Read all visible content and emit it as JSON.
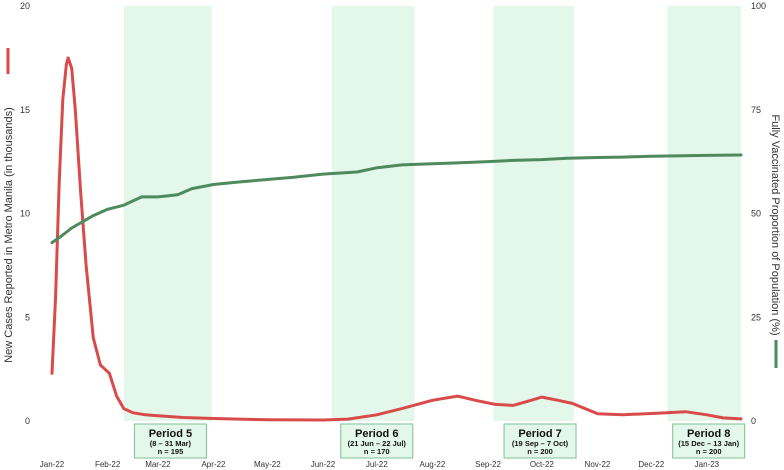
{
  "chart_data": {
    "type": "line",
    "title": "",
    "y_left": {
      "label": "New Cases Reported in Metro Manila (in thousands)",
      "range": [
        0,
        20
      ],
      "ticks": [
        "0",
        "5",
        "10",
        "15",
        "20"
      ],
      "color": "#d94a4a"
    },
    "y_right": {
      "label": "Fully Vaccinated Proportion of Population (%)",
      "range": [
        0,
        100
      ],
      "ticks": [
        "0",
        "25",
        "50",
        "75",
        "100"
      ],
      "color": "#4f8a5e"
    },
    "x_axis": {
      "range": [
        "2022-01-01",
        "2023-01-20"
      ],
      "ticks": [
        {
          "date": "2022-01-01",
          "label": "Jan-22"
        },
        {
          "date": "2022-02-01",
          "label": "Feb-22"
        },
        {
          "date": "2022-03-01",
          "label": "Mar-22"
        },
        {
          "date": "2022-04-01",
          "label": "Apr-22"
        },
        {
          "date": "2022-05-01",
          "label": "May-22"
        },
        {
          "date": "2022-06-01",
          "label": "Jun-22"
        },
        {
          "date": "2022-07-01",
          "label": "Jul-22"
        },
        {
          "date": "2022-08-01",
          "label": "Aug-22"
        },
        {
          "date": "2022-09-01",
          "label": "Sep-22"
        },
        {
          "date": "2022-10-01",
          "label": "Oct-22"
        },
        {
          "date": "2022-11-01",
          "label": "Nov-22"
        },
        {
          "date": "2022-12-01",
          "label": "Dec-22"
        },
        {
          "date": "2023-01-01",
          "label": "Jan-23"
        }
      ]
    },
    "periods": [
      {
        "name": "Period 5",
        "dates": "(8 – 31 Mar)",
        "n": "n = 195",
        "start": "2022-02-10",
        "end": "2022-03-31",
        "box_center": "2022-03-08"
      },
      {
        "name": "Period 6",
        "dates": "(21 Jun – 22 Jul)",
        "n": "n = 170",
        "start": "2022-06-06",
        "end": "2022-07-22",
        "box_center": "2022-07-01"
      },
      {
        "name": "Period 7",
        "dates": "(19 Sep – 7 Oct)",
        "n": "n = 200",
        "start": "2022-09-04",
        "end": "2022-10-19",
        "box_center": "2022-09-30"
      },
      {
        "name": "Period 8",
        "dates": "(15 Dec – 13 Jan)",
        "n": "n = 200",
        "start": "2022-12-10",
        "end": "2023-01-25",
        "box_center": "2023-01-02"
      }
    ],
    "series": [
      {
        "axis": "left",
        "color": "#d94a4a",
        "points": [
          [
            "2022-01-01",
            2.3
          ],
          [
            "2022-01-03",
            6.0
          ],
          [
            "2022-01-05",
            11.5
          ],
          [
            "2022-01-07",
            15.5
          ],
          [
            "2022-01-09",
            17.2
          ],
          [
            "2022-01-10",
            17.5
          ],
          [
            "2022-01-12",
            17.0
          ],
          [
            "2022-01-14",
            15.0
          ],
          [
            "2022-01-17",
            11.0
          ],
          [
            "2022-01-20",
            7.5
          ],
          [
            "2022-01-24",
            4.0
          ],
          [
            "2022-01-28",
            2.7
          ],
          [
            "2022-02-02",
            2.3
          ],
          [
            "2022-02-06",
            1.2
          ],
          [
            "2022-02-10",
            0.6
          ],
          [
            "2022-02-15",
            0.4
          ],
          [
            "2022-02-22",
            0.3
          ],
          [
            "2022-03-01",
            0.25
          ],
          [
            "2022-03-15",
            0.17
          ],
          [
            "2022-04-01",
            0.12
          ],
          [
            "2022-05-01",
            0.06
          ],
          [
            "2022-06-01",
            0.05
          ],
          [
            "2022-06-15",
            0.09
          ],
          [
            "2022-07-01",
            0.3
          ],
          [
            "2022-07-15",
            0.6
          ],
          [
            "2022-08-01",
            1.0
          ],
          [
            "2022-08-15",
            1.2
          ],
          [
            "2022-08-25",
            1.0
          ],
          [
            "2022-09-05",
            0.8
          ],
          [
            "2022-09-15",
            0.75
          ],
          [
            "2022-09-25",
            1.0
          ],
          [
            "2022-10-01",
            1.15
          ],
          [
            "2022-10-10",
            1.0
          ],
          [
            "2022-10-18",
            0.85
          ],
          [
            "2022-11-01",
            0.35
          ],
          [
            "2022-11-15",
            0.3
          ],
          [
            "2022-11-28",
            0.35
          ],
          [
            "2022-12-10",
            0.4
          ],
          [
            "2022-12-20",
            0.45
          ],
          [
            "2023-01-01",
            0.3
          ],
          [
            "2023-01-10",
            0.15
          ],
          [
            "2023-01-20",
            0.1
          ]
        ]
      },
      {
        "axis": "right",
        "color": "#4f8a5e",
        "points": [
          [
            "2022-01-01",
            43
          ],
          [
            "2022-01-06",
            44.5
          ],
          [
            "2022-01-12",
            46.5
          ],
          [
            "2022-01-18",
            48
          ],
          [
            "2022-01-24",
            49.5
          ],
          [
            "2022-02-01",
            51
          ],
          [
            "2022-02-10",
            52
          ],
          [
            "2022-02-15",
            53
          ],
          [
            "2022-02-20",
            54
          ],
          [
            "2022-03-01",
            54
          ],
          [
            "2022-03-12",
            54.5
          ],
          [
            "2022-03-20",
            56
          ],
          [
            "2022-04-01",
            57
          ],
          [
            "2022-04-15",
            57.6
          ],
          [
            "2022-05-01",
            58.2
          ],
          [
            "2022-05-15",
            58.7
          ],
          [
            "2022-06-01",
            59.5
          ],
          [
            "2022-06-20",
            60
          ],
          [
            "2022-07-01",
            61
          ],
          [
            "2022-07-15",
            61.7
          ],
          [
            "2022-08-01",
            62
          ],
          [
            "2022-08-15",
            62.2
          ],
          [
            "2022-09-01",
            62.5
          ],
          [
            "2022-09-15",
            62.8
          ],
          [
            "2022-10-01",
            63
          ],
          [
            "2022-10-15",
            63.3
          ],
          [
            "2022-11-01",
            63.5
          ],
          [
            "2022-11-15",
            63.6
          ],
          [
            "2022-12-01",
            63.8
          ],
          [
            "2023-01-01",
            64
          ],
          [
            "2023-01-20",
            64.1
          ]
        ]
      }
    ]
  }
}
